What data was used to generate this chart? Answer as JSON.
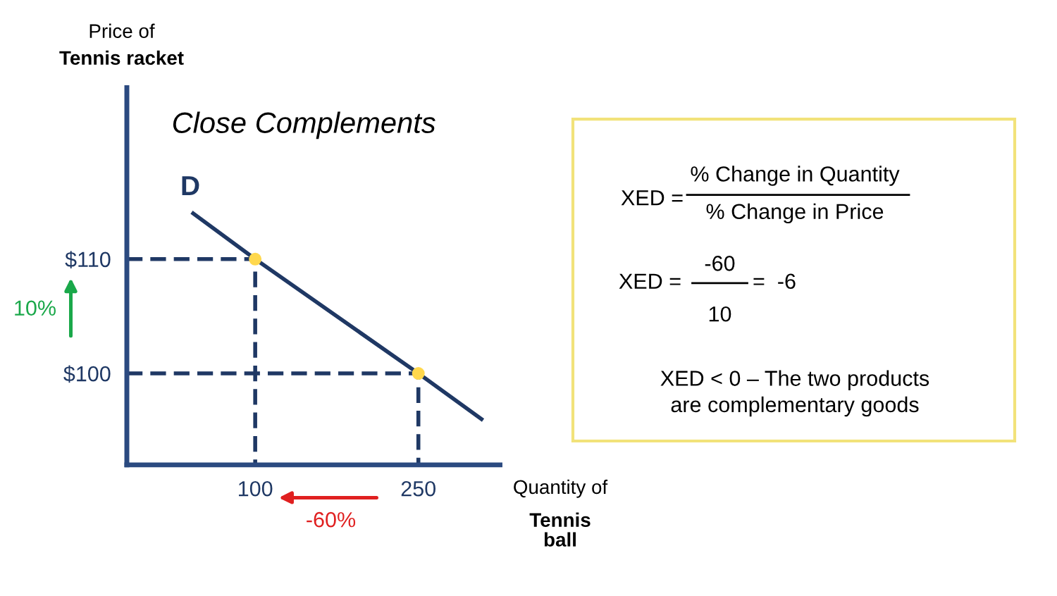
{
  "chart_data": {
    "type": "line",
    "title": "Close Complements",
    "xlabel": "Quantity of\nTennis\nball",
    "ylabel": "Price of\nTennis racket",
    "xlim": [
      -18,
      325
    ],
    "ylim": [
      92,
      125
    ],
    "xticks": [
      100,
      250
    ],
    "yticks": [
      {
        "value": 100,
        "label": "$100"
      },
      {
        "value": 110,
        "label": "$110"
      }
    ],
    "grid": false,
    "series": [
      {
        "color": "#1f3864",
        "x": [
          43,
          100,
          250,
          308
        ],
        "values": [
          114,
          110,
          100,
          96
        ],
        "line_style": "solid",
        "marker": "none"
      },
      {
        "color": "#1f3864",
        "x": [
          -18,
          100,
          100
        ],
        "values": [
          110,
          110,
          92
        ],
        "line_style": "dashed",
        "marker": "none"
      },
      {
        "color": "#1f3864",
        "x": [
          -18,
          250,
          250
        ],
        "values": [
          100,
          100,
          92
        ],
        "line_style": "dashed",
        "marker": "none"
      },
      {
        "type": "scatter",
        "color": "#ffd84d",
        "x": [
          100,
          250
        ],
        "values": [
          110,
          100
        ],
        "marker": "circle"
      }
    ],
    "annotations": [
      "D",
      "10%",
      "-60%",
      "XED =",
      "% Change in Quantity",
      "% Change in Price",
      "XED =",
      "-60",
      "10",
      "=  -6",
      "XED < 0 – The two products\nare complementary goods"
    ]
  }
}
